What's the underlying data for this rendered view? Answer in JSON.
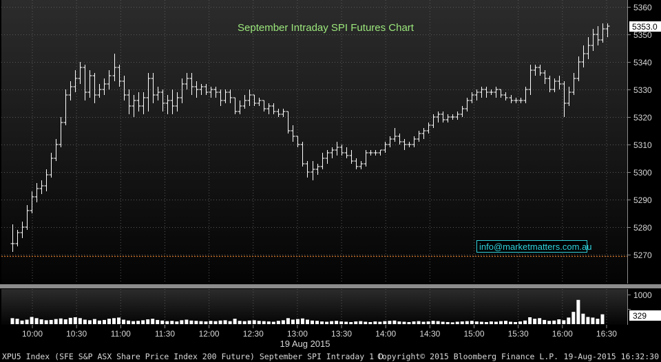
{
  "chart_data": {
    "type": "ohlc",
    "title": "September Intraday SPI Futures Chart",
    "last_price_label": "5353.0",
    "last_volume_label": "329",
    "reference_line": 5269.5,
    "price_ylim": [
      5262,
      5362
    ],
    "price_ticks": [
      5270,
      5280,
      5290,
      5300,
      5310,
      5320,
      5330,
      5340,
      5350,
      5360
    ],
    "volume_ylim": [
      0,
      1150
    ],
    "volume_ticks": [
      1000,
      500
    ],
    "x_ticks": [
      "10:00",
      "10:30",
      "11:00",
      "11:30",
      "12:00",
      "12:30",
      "13:00",
      "13:30",
      "14:00",
      "14:30",
      "15:00",
      "15:30",
      "16:00",
      "16:30"
    ],
    "date_label": "19 Aug 2015",
    "bars": [
      [
        5274,
        5281,
        5271,
        5274
      ],
      [
        5274,
        5279,
        5273,
        5278
      ],
      [
        5278,
        5282,
        5276,
        5280
      ],
      [
        5280,
        5288,
        5279,
        5286
      ],
      [
        5286,
        5293,
        5285,
        5291
      ],
      [
        5291,
        5296,
        5289,
        5294
      ],
      [
        5294,
        5297,
        5292,
        5295
      ],
      [
        5295,
        5301,
        5293,
        5299
      ],
      [
        5299,
        5307,
        5298,
        5305
      ],
      [
        5305,
        5312,
        5304,
        5310
      ],
      [
        5310,
        5320,
        5309,
        5318
      ],
      [
        5318,
        5330,
        5317,
        5328
      ],
      [
        5328,
        5333,
        5326,
        5331
      ],
      [
        5331,
        5337,
        5329,
        5334
      ],
      [
        5334,
        5340,
        5332,
        5338
      ],
      [
        5338,
        5339,
        5326,
        5329
      ],
      [
        5329,
        5337,
        5327,
        5335
      ],
      [
        5335,
        5336,
        5325,
        5328
      ],
      [
        5328,
        5332,
        5327,
        5330
      ],
      [
        5330,
        5334,
        5328,
        5332
      ],
      [
        5332,
        5337,
        5330,
        5335
      ],
      [
        5335,
        5343,
        5333,
        5338
      ],
      [
        5338,
        5339,
        5331,
        5333
      ],
      [
        5333,
        5335,
        5326,
        5328
      ],
      [
        5328,
        5330,
        5321,
        5324
      ],
      [
        5324,
        5328,
        5320,
        5326
      ],
      [
        5326,
        5329,
        5322,
        5324
      ],
      [
        5324,
        5329,
        5321,
        5327
      ],
      [
        5327,
        5336,
        5322,
        5334
      ],
      [
        5334,
        5336,
        5325,
        5328
      ],
      [
        5328,
        5331,
        5326,
        5329
      ],
      [
        5329,
        5330,
        5322,
        5325
      ],
      [
        5325,
        5328,
        5321,
        5326
      ],
      [
        5326,
        5330,
        5321,
        5324
      ],
      [
        5324,
        5329,
        5322,
        5327
      ],
      [
        5327,
        5334,
        5325,
        5332
      ],
      [
        5332,
        5336,
        5330,
        5334
      ],
      [
        5334,
        5336,
        5328,
        5331
      ],
      [
        5331,
        5333,
        5327,
        5330
      ],
      [
        5330,
        5332,
        5328,
        5331
      ],
      [
        5331,
        5332,
        5328,
        5329
      ],
      [
        5329,
        5331,
        5327,
        5330
      ],
      [
        5330,
        5331,
        5327,
        5329
      ],
      [
        5329,
        5330,
        5324,
        5326
      ],
      [
        5326,
        5330,
        5325,
        5329
      ],
      [
        5329,
        5330,
        5325,
        5327
      ],
      [
        5327,
        5327,
        5321,
        5322
      ],
      [
        5322,
        5326,
        5321,
        5324
      ],
      [
        5324,
        5328,
        5323,
        5326
      ],
      [
        5326,
        5330,
        5324,
        5328
      ],
      [
        5328,
        5328,
        5324,
        5325
      ],
      [
        5325,
        5327,
        5324,
        5326
      ],
      [
        5326,
        5326,
        5322,
        5323
      ],
      [
        5323,
        5325,
        5321,
        5324
      ],
      [
        5324,
        5325,
        5321,
        5322
      ],
      [
        5322,
        5323,
        5320,
        5321
      ],
      [
        5321,
        5323,
        5320,
        5322
      ],
      [
        5322,
        5322,
        5314,
        5315
      ],
      [
        5315,
        5317,
        5311,
        5313
      ],
      [
        5313,
        5313,
        5309,
        5310
      ],
      [
        5310,
        5311,
        5302,
        5303
      ],
      [
        5303,
        5304,
        5298,
        5300
      ],
      [
        5300,
        5304,
        5297,
        5301
      ],
      [
        5301,
        5303,
        5299,
        5302
      ],
      [
        5302,
        5307,
        5301,
        5305
      ],
      [
        5305,
        5308,
        5303,
        5307
      ],
      [
        5307,
        5309,
        5305,
        5308
      ],
      [
        5308,
        5311,
        5306,
        5309
      ],
      [
        5309,
        5310,
        5306,
        5307
      ],
      [
        5307,
        5309,
        5305,
        5306
      ],
      [
        5306,
        5308,
        5303,
        5304
      ],
      [
        5304,
        5305,
        5301,
        5302
      ],
      [
        5302,
        5304,
        5301,
        5303
      ],
      [
        5303,
        5308,
        5302,
        5307
      ],
      [
        5307,
        5308,
        5306,
        5307
      ],
      [
        5307,
        5308,
        5306,
        5307
      ],
      [
        5307,
        5308,
        5306,
        5308
      ],
      [
        5308,
        5311,
        5307,
        5310
      ],
      [
        5310,
        5313,
        5309,
        5312
      ],
      [
        5312,
        5316,
        5311,
        5313
      ],
      [
        5313,
        5314,
        5310,
        5311
      ],
      [
        5311,
        5312,
        5308,
        5310
      ],
      [
        5310,
        5311,
        5309,
        5310
      ],
      [
        5310,
        5313,
        5309,
        5312
      ],
      [
        5312,
        5315,
        5311,
        5314
      ],
      [
        5314,
        5316,
        5312,
        5315
      ],
      [
        5315,
        5318,
        5314,
        5317
      ],
      [
        5317,
        5321,
        5316,
        5320
      ],
      [
        5320,
        5322,
        5318,
        5321
      ],
      [
        5321,
        5322,
        5318,
        5319
      ],
      [
        5319,
        5321,
        5318,
        5320
      ],
      [
        5320,
        5321,
        5319,
        5320
      ],
      [
        5320,
        5322,
        5319,
        5321
      ],
      [
        5321,
        5324,
        5320,
        5323
      ],
      [
        5323,
        5327,
        5322,
        5326
      ],
      [
        5326,
        5329,
        5325,
        5328
      ],
      [
        5328,
        5330,
        5326,
        5329
      ],
      [
        5329,
        5331,
        5327,
        5330
      ],
      [
        5330,
        5331,
        5327,
        5329
      ],
      [
        5329,
        5330,
        5328,
        5329
      ],
      [
        5329,
        5331,
        5327,
        5330
      ],
      [
        5330,
        5330,
        5327,
        5328
      ],
      [
        5328,
        5329,
        5326,
        5327
      ],
      [
        5327,
        5328,
        5325,
        5326
      ],
      [
        5326,
        5327,
        5325,
        5326
      ],
      [
        5326,
        5327,
        5325,
        5326
      ],
      [
        5326,
        5331,
        5325,
        5330
      ],
      [
        5330,
        5339,
        5328,
        5337
      ],
      [
        5337,
        5339,
        5335,
        5338
      ],
      [
        5338,
        5339,
        5335,
        5336
      ],
      [
        5336,
        5337,
        5332,
        5334
      ],
      [
        5334,
        5335,
        5329,
        5330
      ],
      [
        5330,
        5334,
        5329,
        5333
      ],
      [
        5333,
        5335,
        5330,
        5332
      ],
      [
        5332,
        5333,
        5320,
        5325
      ],
      [
        5325,
        5331,
        5324,
        5329
      ],
      [
        5329,
        5336,
        5328,
        5334
      ],
      [
        5334,
        5342,
        5333,
        5340
      ],
      [
        5340,
        5346,
        5338,
        5343
      ],
      [
        5343,
        5349,
        5341,
        5346
      ],
      [
        5346,
        5352,
        5344,
        5350
      ],
      [
        5350,
        5353,
        5346,
        5348
      ],
      [
        5348,
        5354,
        5347,
        5352
      ],
      [
        5352,
        5354,
        5349,
        5353
      ]
    ],
    "volumes": [
      200,
      180,
      120,
      150,
      240,
      200,
      160,
      130,
      140,
      170,
      190,
      160,
      210,
      230,
      200,
      150,
      130,
      170,
      120,
      140,
      180,
      200,
      220,
      150,
      120,
      100,
      110,
      130,
      160,
      180,
      140,
      120,
      100,
      110,
      90,
      130,
      150,
      120,
      110,
      100,
      90,
      110,
      100,
      120,
      130,
      100,
      180,
      110,
      100,
      120,
      130,
      110,
      100,
      90,
      80,
      110,
      130,
      200,
      150,
      170,
      190,
      150,
      120,
      110,
      90,
      80,
      100,
      110,
      90,
      80,
      70,
      90,
      100,
      80,
      70,
      90,
      80,
      100,
      110,
      120,
      90,
      80,
      70,
      90,
      100,
      80,
      90,
      110,
      100,
      80,
      70,
      60,
      80,
      90,
      100,
      110,
      90,
      80,
      70,
      90,
      80,
      100,
      110,
      80,
      70,
      90,
      120,
      230,
      180,
      200,
      140,
      110,
      120,
      160,
      130,
      220,
      410,
      810,
      350,
      240,
      220,
      180,
      329
    ],
    "footer": {
      "security": "XPU5 Index (SFE S&P ASX Share Price Index 200 Future) September SPI Intraday 1 D",
      "copyright": "Copyright© 2015 Bloomberg Finance L.P.",
      "timestamp": "19-Aug-2015 16:32:30"
    },
    "watermark": "info@marketmatters.com.au",
    "colors": {
      "background": "#000000",
      "price_panel_top": "#2c2c2c",
      "price_panel_bottom": "#040404",
      "bars": "#ffffff",
      "reference_line": "#d7772b",
      "title": "#9ce87c",
      "watermark": "#2fd3dd",
      "axis_text": "#d8d8d8",
      "grid": "#5a5a5a",
      "separator": "#8c8c8c"
    }
  }
}
